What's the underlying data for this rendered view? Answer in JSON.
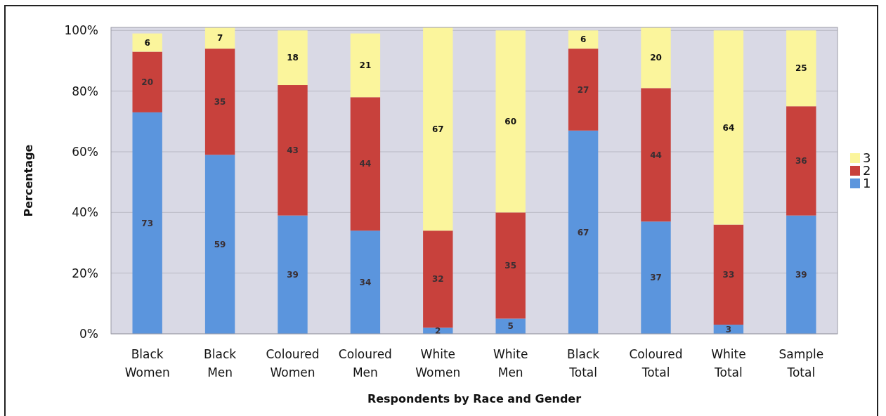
{
  "chart_data": {
    "type": "bar",
    "stacked": true,
    "categories": [
      "Black Women",
      "Black Men",
      "Coloured Women",
      "Coloured Men",
      "White Women",
      "White Men",
      "Black Total",
      "Coloured Total",
      "White Total",
      "Sample Total"
    ],
    "series": [
      {
        "name": "1",
        "color": "#5b95dd",
        "values": [
          73,
          59,
          39,
          34,
          2,
          5,
          67,
          37,
          3,
          39
        ]
      },
      {
        "name": "2",
        "color": "#c8413c",
        "values": [
          20,
          35,
          43,
          44,
          32,
          35,
          27,
          44,
          33,
          36
        ]
      },
      {
        "name": "3",
        "color": "#fbf59c",
        "values": [
          6,
          7,
          18,
          21,
          67,
          60,
          6,
          20,
          64,
          25
        ]
      }
    ],
    "ylim": [
      0,
      101
    ],
    "yticks": [
      {
        "value": 0,
        "label": "0%"
      },
      {
        "value": 20,
        "label": "20%"
      },
      {
        "value": 40,
        "label": "40%"
      },
      {
        "value": 60,
        "label": "60%"
      },
      {
        "value": 80,
        "label": "80%"
      },
      {
        "value": 100,
        "label": "100%"
      }
    ],
    "xlabel": "Respondents by Race and Gender",
    "ylabel": "Percentage",
    "grid": "y",
    "legend": "right",
    "data_labels": true
  }
}
